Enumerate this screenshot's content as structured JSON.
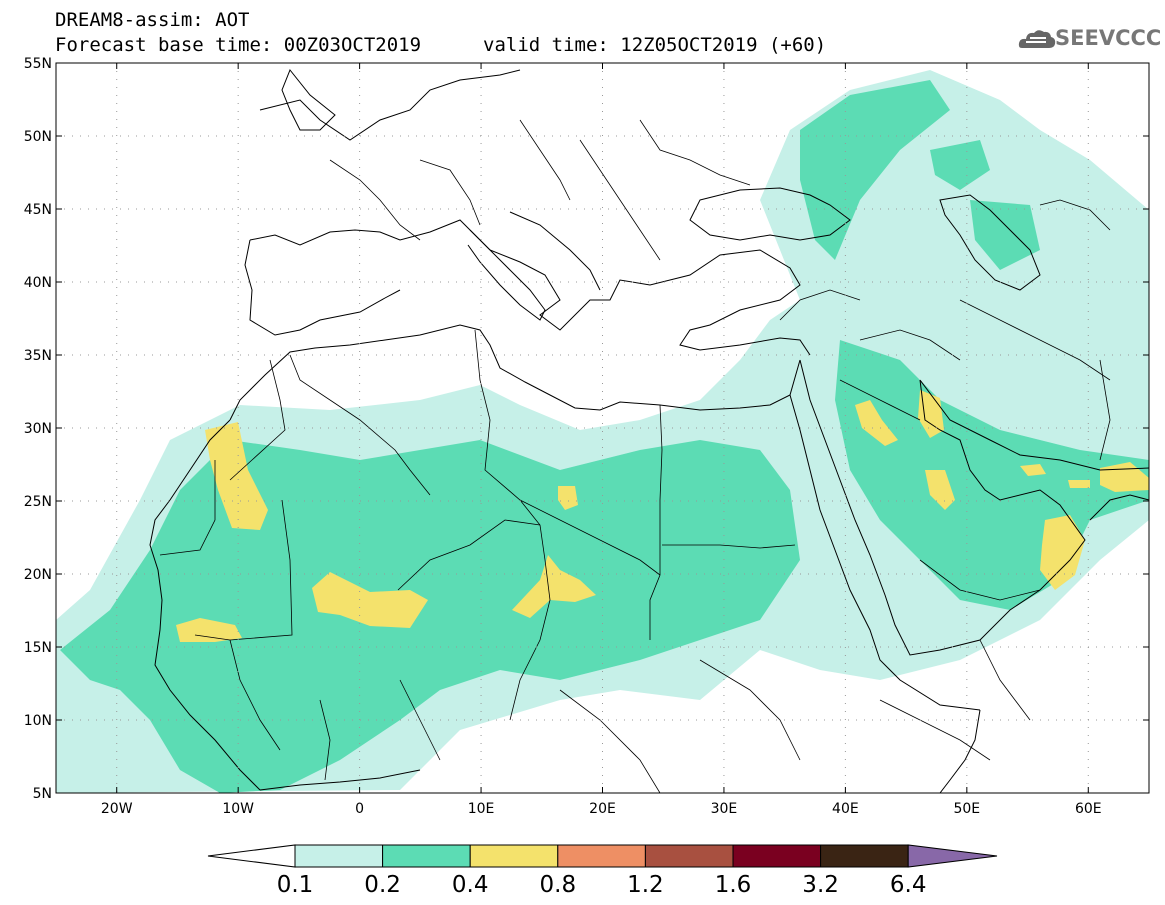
{
  "header": {
    "title": "DREAM8-assim: AOT",
    "base_time": "Forecast base time: 00Z03OCT2019",
    "valid_time": "valid time: 12Z05OCT2019 (+60)"
  },
  "logo": {
    "text": "SEEVCCC"
  },
  "map": {
    "projection": "lat-lon",
    "lon_range": [
      -25,
      65
    ],
    "lat_range": [
      5,
      55
    ],
    "lat_ticks": [
      "55N",
      "50N",
      "45N",
      "40N",
      "35N",
      "30N",
      "25N",
      "20N",
      "15N",
      "10N",
      "5N"
    ],
    "lon_ticks": [
      "20W",
      "10W",
      "0",
      "10E",
      "20E",
      "30E",
      "40E",
      "50E",
      "60E"
    ],
    "grid": "dotted"
  },
  "colorbar": {
    "labels": [
      "0.1",
      "0.2",
      "0.4",
      "0.8",
      "1.2",
      "1.6",
      "3.2",
      "6.4"
    ],
    "colors": [
      "#ffffff",
      "#c6f0e8",
      "#5cdcb4",
      "#f4e26c",
      "#ee8f64",
      "#a85040",
      "#7a0020",
      "#3a2414",
      "#8868a8"
    ]
  }
}
